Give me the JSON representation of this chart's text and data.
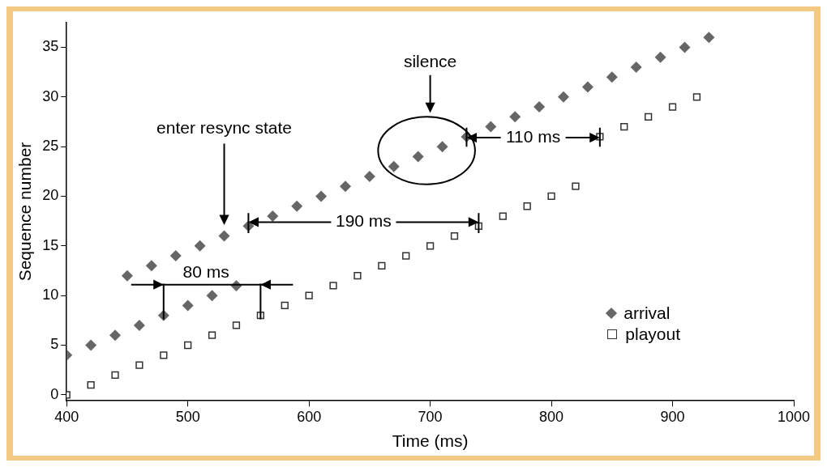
{
  "chart_data": {
    "type": "scatter",
    "xlabel": "Time (ms)",
    "ylabel": "Sequence number",
    "xlim": [
      400,
      1000
    ],
    "xticks": [
      400,
      500,
      600,
      700,
      800,
      900,
      1000
    ],
    "ylim": [
      -0.6,
      37.5
    ],
    "yticks": [
      0,
      5,
      10,
      15,
      20,
      25,
      30,
      35
    ],
    "grid": false,
    "legend": "right",
    "series": [
      {
        "name": "arrival",
        "color": "#666666",
        "marker": "diamond",
        "x": [
          400,
          420,
          440,
          460,
          480,
          500,
          520,
          540,
          450,
          470,
          490,
          510,
          530,
          550,
          570,
          590,
          610,
          630,
          650,
          670,
          690,
          710,
          730,
          750,
          770,
          790,
          810,
          830,
          850,
          870,
          890,
          910,
          930
        ],
        "values": [
          4,
          5,
          6,
          7,
          8,
          9,
          10,
          11,
          12,
          13,
          14,
          15,
          16,
          17,
          18,
          19,
          20,
          21,
          22,
          23,
          24,
          25,
          26,
          27,
          28,
          29,
          30,
          31,
          32,
          33,
          34,
          35,
          36
        ]
      },
      {
        "name": "playout",
        "color": "#333333",
        "marker": "square",
        "x": [
          400,
          420,
          440,
          460,
          480,
          500,
          520,
          540,
          560,
          580,
          600,
          620,
          640,
          660,
          680,
          700,
          720,
          740,
          760,
          780,
          800,
          820,
          840,
          860,
          880,
          900,
          920
        ],
        "values": [
          0,
          1,
          2,
          3,
          4,
          5,
          6,
          7,
          8,
          9,
          10,
          11,
          12,
          13,
          14,
          15,
          16,
          17,
          18,
          19,
          20,
          21,
          26,
          27,
          28,
          29,
          30
        ]
      }
    ],
    "annotations": [
      "silence",
      "enter resync state",
      "190 ms",
      "110 ms",
      "80 ms"
    ]
  }
}
